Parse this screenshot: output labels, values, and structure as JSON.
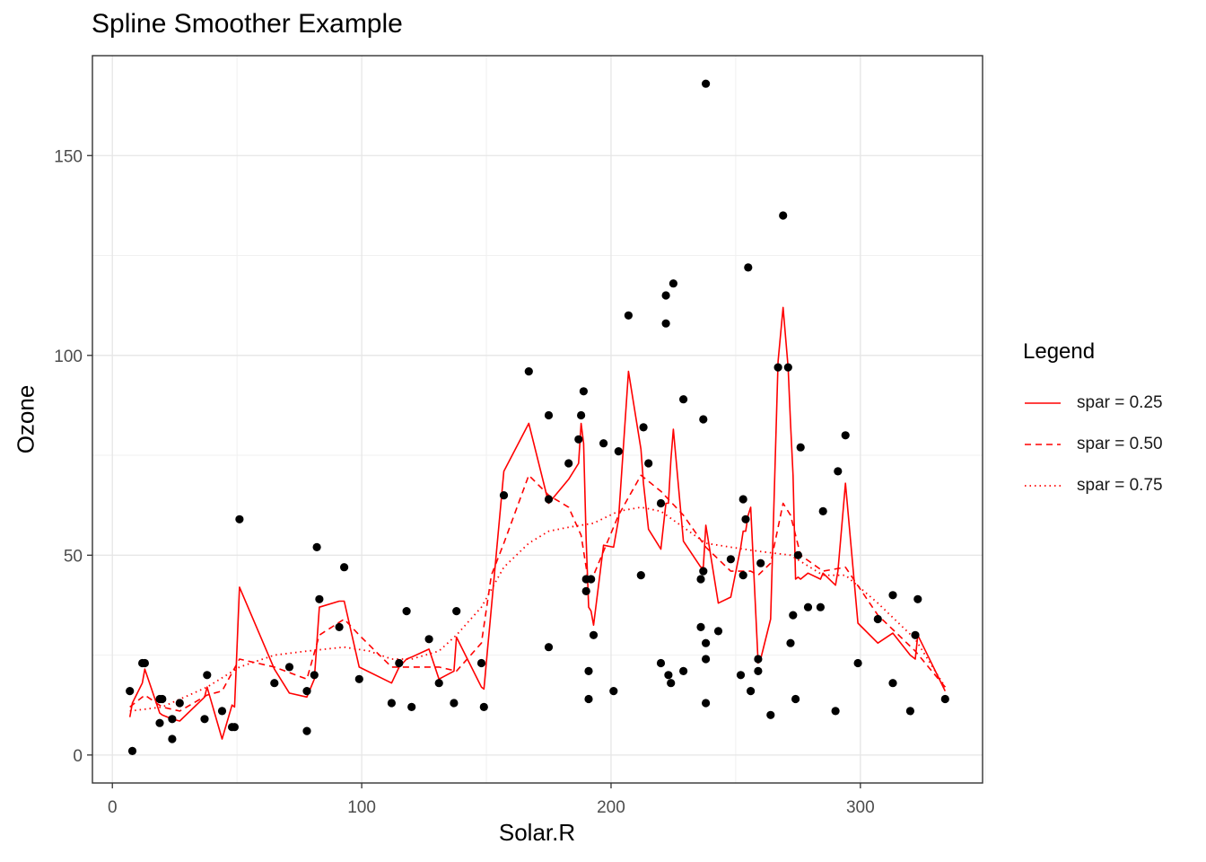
{
  "chart_data": {
    "type": "scatter",
    "title": "Spline Smoother Example",
    "xlabel": "Solar.R",
    "ylabel": "Ozone",
    "xlim": [
      -8,
      349
    ],
    "ylim": [
      -7,
      175
    ],
    "xticks": [
      0,
      100,
      200,
      300
    ],
    "yticks": [
      0,
      50,
      100,
      150
    ],
    "grid": true,
    "legend_position": "right",
    "legend_title": "Legend",
    "points": [
      [
        7,
        16
      ],
      [
        8,
        1
      ],
      [
        12,
        23
      ],
      [
        13,
        23
      ],
      [
        19,
        14
      ],
      [
        19,
        8
      ],
      [
        20,
        14
      ],
      [
        24,
        4
      ],
      [
        24,
        9
      ],
      [
        27,
        13
      ],
      [
        37,
        9
      ],
      [
        38,
        20
      ],
      [
        44,
        11
      ],
      [
        48,
        7
      ],
      [
        49,
        7
      ],
      [
        51,
        59
      ],
      [
        65,
        18
      ],
      [
        71,
        22
      ],
      [
        78,
        16
      ],
      [
        78,
        6
      ],
      [
        81,
        20
      ],
      [
        82,
        52
      ],
      [
        83,
        39
      ],
      [
        91,
        32
      ],
      [
        93,
        47
      ],
      [
        99,
        19
      ],
      [
        112,
        13
      ],
      [
        115,
        23
      ],
      [
        118,
        36
      ],
      [
        120,
        12
      ],
      [
        127,
        29
      ],
      [
        131,
        18
      ],
      [
        137,
        13
      ],
      [
        138,
        36
      ],
      [
        148,
        23
      ],
      [
        149,
        12
      ],
      [
        157,
        65
      ],
      [
        167,
        96
      ],
      [
        175,
        27
      ],
      [
        175,
        64
      ],
      [
        175,
        85
      ],
      [
        183,
        73
      ],
      [
        187,
        79
      ],
      [
        188,
        85
      ],
      [
        189,
        91
      ],
      [
        190,
        41
      ],
      [
        190,
        44
      ],
      [
        191,
        14
      ],
      [
        191,
        21
      ],
      [
        192,
        44
      ],
      [
        193,
        30
      ],
      [
        197,
        78
      ],
      [
        201,
        16
      ],
      [
        203,
        76
      ],
      [
        207,
        110
      ],
      [
        212,
        45
      ],
      [
        213,
        82
      ],
      [
        215,
        73
      ],
      [
        220,
        63
      ],
      [
        220,
        23
      ],
      [
        222,
        108
      ],
      [
        222,
        115
      ],
      [
        223,
        20
      ],
      [
        224,
        18
      ],
      [
        225,
        118
      ],
      [
        229,
        21
      ],
      [
        229,
        89
      ],
      [
        236,
        44
      ],
      [
        236,
        32
      ],
      [
        237,
        84
      ],
      [
        237,
        46
      ],
      [
        238,
        28
      ],
      [
        238,
        24
      ],
      [
        238,
        13
      ],
      [
        238,
        168
      ],
      [
        243,
        31
      ],
      [
        248,
        49
      ],
      [
        252,
        20
      ],
      [
        253,
        45
      ],
      [
        253,
        64
      ],
      [
        254,
        59
      ],
      [
        255,
        122
      ],
      [
        256,
        16
      ],
      [
        259,
        24
      ],
      [
        259,
        21
      ],
      [
        260,
        48
      ],
      [
        264,
        10
      ],
      [
        267,
        97
      ],
      [
        269,
        135
      ],
      [
        271,
        97
      ],
      [
        272,
        28
      ],
      [
        273,
        35
      ],
      [
        274,
        14
      ],
      [
        275,
        50
      ],
      [
        276,
        77
      ],
      [
        279,
        37
      ],
      [
        284,
        37
      ],
      [
        285,
        61
      ],
      [
        290,
        11
      ],
      [
        291,
        71
      ],
      [
        294,
        80
      ],
      [
        299,
        23
      ],
      [
        307,
        34
      ],
      [
        313,
        40
      ],
      [
        313,
        18
      ],
      [
        320,
        11
      ],
      [
        322,
        30
      ],
      [
        323,
        39
      ],
      [
        334,
        14
      ]
    ],
    "series": [
      {
        "name": "spar = 0.25",
        "line_style": "solid",
        "color": "#FF0000",
        "x": [
          7,
          8,
          12,
          13,
          19,
          20,
          24,
          27,
          37,
          38,
          44,
          48,
          49,
          51,
          65,
          71,
          78,
          81,
          82,
          83,
          91,
          93,
          99,
          112,
          115,
          118,
          120,
          127,
          131,
          137,
          138,
          148,
          149,
          157,
          167,
          175,
          183,
          187,
          188,
          189,
          190,
          191,
          192,
          193,
          197,
          201,
          203,
          207,
          212,
          213,
          215,
          220,
          222,
          223,
          224,
          225,
          229,
          236,
          237,
          238,
          243,
          248,
          252,
          253,
          254,
          255,
          256,
          259,
          260,
          264,
          267,
          269,
          271,
          272,
          273,
          274,
          275,
          276,
          279,
          284,
          285,
          290,
          291,
          294,
          299,
          307,
          313,
          320,
          322,
          323,
          334
        ],
        "y": [
          9.5,
          13,
          18,
          21.5,
          10.5,
          10,
          9,
          8.5,
          14.5,
          17,
          4,
          12.5,
          12,
          42,
          21.5,
          15.5,
          14.5,
          19,
          28,
          37,
          38.5,
          38.5,
          22,
          18,
          22,
          24,
          24.5,
          26.5,
          19,
          21,
          29.5,
          17,
          16.5,
          71,
          83,
          63,
          69,
          73,
          83,
          78,
          54,
          37,
          36,
          32.5,
          52.5,
          52,
          59,
          96,
          76.5,
          68,
          56.5,
          51.5,
          63,
          63,
          74,
          81.5,
          53.5,
          47,
          47,
          57.5,
          38,
          39.5,
          52,
          56,
          56,
          60,
          62,
          23,
          24,
          34,
          98.5,
          112,
          97,
          83,
          70,
          44,
          44.5,
          44,
          45.5,
          44,
          45.5,
          42.5,
          46,
          68,
          33,
          28,
          30.5,
          25,
          24,
          30,
          16
        ]
      },
      {
        "name": "spar = 0.50",
        "line_style": "dashed",
        "color": "#FF0000",
        "x": [
          7,
          13,
          20,
          27,
          38,
          44,
          51,
          65,
          78,
          83,
          93,
          99,
          112,
          120,
          131,
          138,
          148,
          152,
          157,
          167,
          175,
          183,
          188,
          191,
          193,
          203,
          212,
          220,
          229,
          238,
          248,
          256,
          259,
          264,
          269,
          272,
          276,
          285,
          294,
          307,
          322,
          334
        ],
        "y": [
          12,
          15,
          12,
          11,
          15,
          16,
          24,
          22,
          19,
          30,
          34,
          30,
          22,
          22,
          22,
          21,
          28,
          45,
          53,
          70,
          65,
          62,
          55,
          43,
          45,
          60,
          70,
          66,
          60,
          52,
          46,
          46,
          45,
          48,
          63,
          60,
          50,
          46,
          47,
          35,
          26,
          17
        ]
      },
      {
        "name": "spar = 0.75",
        "line_style": "dotted",
        "color": "#FF0000",
        "x": [
          7,
          20,
          38,
          51,
          65,
          78,
          93,
          103,
          112,
          120,
          131,
          138,
          148,
          157,
          167,
          175,
          183,
          193,
          203,
          212,
          220,
          229,
          238,
          248,
          259,
          272,
          285,
          294,
          307,
          322,
          334
        ],
        "y": [
          11,
          12,
          17,
          22,
          25,
          26,
          27,
          26,
          24,
          24,
          26,
          30,
          37,
          47,
          53,
          56,
          57,
          58,
          61,
          62,
          61,
          57,
          53,
          52,
          51,
          50,
          45,
          45,
          38,
          29,
          17
        ]
      }
    ]
  }
}
